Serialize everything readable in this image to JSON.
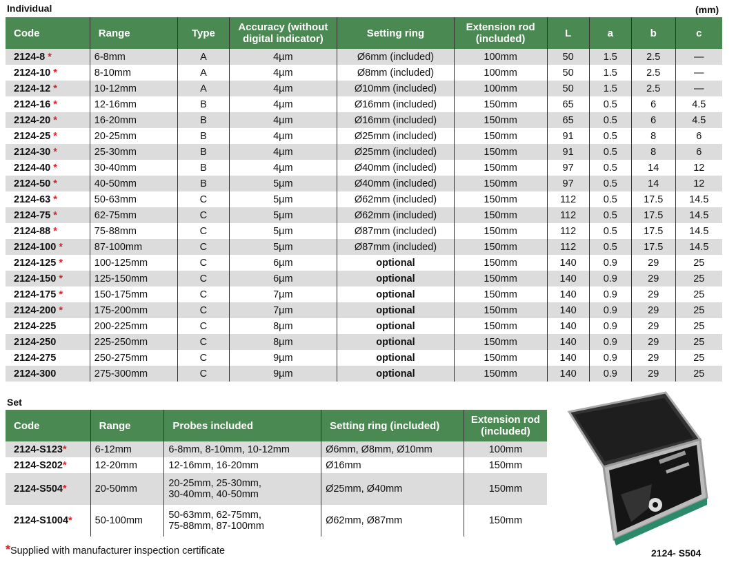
{
  "individual": {
    "title": "Individual",
    "unit": "(mm)",
    "headers": [
      "Code",
      "Range",
      "Type",
      "Accuracy (without digital indicator)",
      "Setting ring",
      "Extension rod (included)",
      "L",
      "a",
      "b",
      "c"
    ],
    "rows": [
      [
        "2124-8",
        true,
        "6-8mm",
        "A",
        "4µm",
        "Ø6mm (included)",
        "100mm",
        "50",
        "1.5",
        "2.5",
        "—"
      ],
      [
        "2124-10",
        true,
        "8-10mm",
        "A",
        "4µm",
        "Ø8mm (included)",
        "100mm",
        "50",
        "1.5",
        "2.5",
        "—"
      ],
      [
        "2124-12",
        true,
        "10-12mm",
        "A",
        "4µm",
        "Ø10mm (included)",
        "100mm",
        "50",
        "1.5",
        "2.5",
        "—"
      ],
      [
        "2124-16",
        true,
        "12-16mm",
        "B",
        "4µm",
        "Ø16mm (included)",
        "150mm",
        "65",
        "0.5",
        "6",
        "4.5"
      ],
      [
        "2124-20",
        true,
        "16-20mm",
        "B",
        "4µm",
        "Ø16mm (included)",
        "150mm",
        "65",
        "0.5",
        "6",
        "4.5"
      ],
      [
        "2124-25",
        true,
        "20-25mm",
        "B",
        "4µm",
        "Ø25mm (included)",
        "150mm",
        "91",
        "0.5",
        "8",
        "6"
      ],
      [
        "2124-30",
        true,
        "25-30mm",
        "B",
        "4µm",
        "Ø25mm (included)",
        "150mm",
        "91",
        "0.5",
        "8",
        "6"
      ],
      [
        "2124-40",
        true,
        "30-40mm",
        "B",
        "4µm",
        "Ø40mm (included)",
        "150mm",
        "97",
        "0.5",
        "14",
        "12"
      ],
      [
        "2124-50",
        true,
        "40-50mm",
        "B",
        "5µm",
        "Ø40mm (included)",
        "150mm",
        "97",
        "0.5",
        "14",
        "12"
      ],
      [
        "2124-63",
        true,
        "50-63mm",
        "C",
        "5µm",
        "Ø62mm (included)",
        "150mm",
        "112",
        "0.5",
        "17.5",
        "14.5"
      ],
      [
        "2124-75",
        true,
        "62-75mm",
        "C",
        "5µm",
        "Ø62mm (included)",
        "150mm",
        "112",
        "0.5",
        "17.5",
        "14.5"
      ],
      [
        "2124-88",
        true,
        "75-88mm",
        "C",
        "5µm",
        "Ø87mm (included)",
        "150mm",
        "112",
        "0.5",
        "17.5",
        "14.5"
      ],
      [
        "2124-100",
        true,
        "87-100mm",
        "C",
        "5µm",
        "Ø87mm (included)",
        "150mm",
        "112",
        "0.5",
        "17.5",
        "14.5"
      ],
      [
        "2124-125",
        true,
        "100-125mm",
        "C",
        "6µm",
        "optional",
        "150mm",
        "140",
        "0.9",
        "29",
        "25"
      ],
      [
        "2124-150",
        true,
        "125-150mm",
        "C",
        "6µm",
        "optional",
        "150mm",
        "140",
        "0.9",
        "29",
        "25"
      ],
      [
        "2124-175",
        true,
        "150-175mm",
        "C",
        "7µm",
        "optional",
        "150mm",
        "140",
        "0.9",
        "29",
        "25"
      ],
      [
        "2124-200",
        true,
        "175-200mm",
        "C",
        "7µm",
        "optional",
        "150mm",
        "140",
        "0.9",
        "29",
        "25"
      ],
      [
        "2124-225",
        false,
        "200-225mm",
        "C",
        "8µm",
        "optional",
        "150mm",
        "140",
        "0.9",
        "29",
        "25"
      ],
      [
        "2124-250",
        false,
        "225-250mm",
        "C",
        "8µm",
        "optional",
        "150mm",
        "140",
        "0.9",
        "29",
        "25"
      ],
      [
        "2124-275",
        false,
        "250-275mm",
        "C",
        "9µm",
        "optional",
        "150mm",
        "140",
        "0.9",
        "29",
        "25"
      ],
      [
        "2124-300",
        false,
        "275-300mm",
        "C",
        "9µm",
        "optional",
        "150mm",
        "140",
        "0.9",
        "29",
        "25"
      ]
    ]
  },
  "set": {
    "title": "Set",
    "headers": [
      "Code",
      "Range",
      "Probes included",
      "Setting ring (included)",
      "Extension rod (included)"
    ],
    "rows": [
      [
        "2124-S123",
        true,
        "6-12mm",
        "6-8mm, 8-10mm, 10-12mm",
        "Ø6mm, Ø8mm, Ø10mm",
        "100mm"
      ],
      [
        "2124-S202",
        true,
        "12-20mm",
        "12-16mm, 16-20mm",
        "Ø16mm",
        "150mm"
      ],
      [
        "2124-S504",
        true,
        "20-50mm",
        "20-25mm, 25-30mm,\n30-40mm, 40-50mm",
        "Ø25mm, Ø40mm",
        "150mm"
      ],
      [
        "2124-S1004",
        true,
        "50-100mm",
        "50-63mm, 62-75mm,\n75-88mm, 87-100mm",
        "Ø62mm, Ø87mm",
        "150mm"
      ]
    ]
  },
  "star": "*",
  "footnote": "Supplied with manufacturer inspection certificate",
  "image_caption": "2124- S504",
  "colors": {
    "header": "#4a8a52",
    "star": "#d9232a",
    "stripe": "#dcdcdc"
  }
}
